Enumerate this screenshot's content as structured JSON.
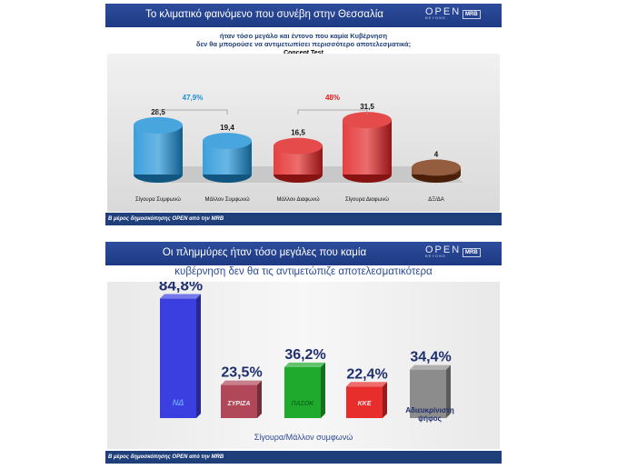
{
  "top": {
    "banner_title": "Το κλιματικό φαινόμενο που συνέβη στην Θεσσαλία",
    "logo_text": "OPEN",
    "logo_sub": "BEYOND",
    "mrb_label": "MRB",
    "question_line1": "ήταν τόσο μεγάλο και έντονο που καμία Κυβέρνηση",
    "question_line2": "δεν θα μπορούσε να αντιμετωπίσει περισσότερο αποτελεσματικά;",
    "subtitle": "Concept Test",
    "source": "Β μέρος δημοσκόπησης OPEN από την MRB"
  },
  "bottom": {
    "banner_title": "Οι πλημμύρες ήταν τόσο μεγάλες που καμία",
    "banner_title2": "κυβέρνηση δεν θα τις αντιμετώπιζε αποτελεσματικότερα",
    "logo_text": "OPEN",
    "logo_sub": "BEYOND",
    "mrb_label": "MRB",
    "source": "Β μέρος δημοσκόπησης OPEN από την MRB"
  },
  "chart_data": [
    {
      "type": "bar",
      "categories": [
        "Σίγουρα Συμφωνώ",
        "Μάλλον Συμφωνώ",
        "Μάλλον Διαφωνώ",
        "Σίγουρα Διαφωνώ",
        "ΔΞ/ΔΑ"
      ],
      "values": [
        28.5,
        19.4,
        16.5,
        31.5,
        4
      ],
      "value_labels": [
        "28,5",
        "19,4",
        "16,5",
        "31,5",
        "4"
      ],
      "colors": [
        "#1a8fd6",
        "#1a8fd6",
        "#e01e1e",
        "#e01e1e",
        "#7a3410"
      ],
      "annotations": [
        {
          "label": "47,9%",
          "spans": [
            0,
            1
          ],
          "color": "#1a8fd6"
        },
        {
          "label": "48%",
          "spans": [
            2,
            3
          ],
          "color": "#e01e1e"
        }
      ]
    },
    {
      "type": "bar",
      "categories": [
        "ΝΔ",
        "ΣΥΡΙΖΑ",
        "ΠΑΣΟΚ",
        "ΚΚΕ",
        "Αδιευκρίνιστη ψήφος"
      ],
      "category_labels": [
        "ΝΔ",
        "ΣΥΡΙΖΑ",
        "ΠΑΣΟΚ",
        "ΚΚΕ",
        "Αδιευκρίνιστη ψήφος"
      ],
      "values": [
        84.8,
        23.5,
        36.2,
        22.4,
        34.4
      ],
      "value_labels": [
        "84,8%",
        "23,5%",
        "36,2%",
        "22,4%",
        "34,4%"
      ],
      "colors": [
        "#3b3fe0",
        "#b0485a",
        "#1faa2e",
        "#e82d2d",
        "#8c8c8c"
      ],
      "xlabel": "Σίγουρα/Μάλλον συμφωνώ"
    }
  ]
}
